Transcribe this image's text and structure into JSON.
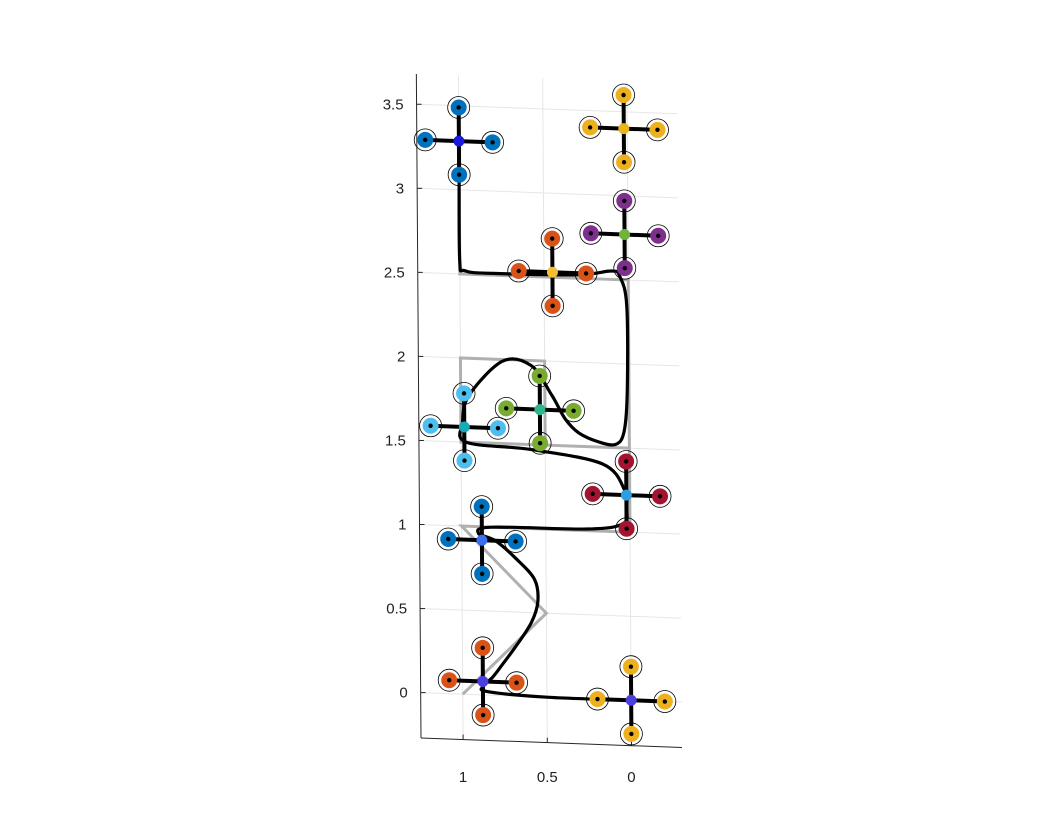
{
  "chart_data": {
    "type": "line",
    "title": "",
    "xlabel": "",
    "ylabel": "",
    "x_reversed": true,
    "xlim": [
      1.25,
      -0.3
    ],
    "ylim": [
      -0.27,
      3.68
    ],
    "grid": true,
    "x_ticks": [
      {
        "value": 1,
        "label": "1"
      },
      {
        "value": 0.5,
        "label": "0.5"
      },
      {
        "value": 0,
        "label": "0"
      }
    ],
    "y_ticks": [
      {
        "value": 0,
        "label": "0"
      },
      {
        "value": 0.5,
        "label": "0.5"
      },
      {
        "value": 1,
        "label": "1"
      },
      {
        "value": 1.5,
        "label": "1.5"
      },
      {
        "value": 2,
        "label": "2"
      },
      {
        "value": 2.5,
        "label": "2.5"
      },
      {
        "value": 3,
        "label": "3"
      },
      {
        "value": 3.5,
        "label": "3.5"
      }
    ],
    "series": [
      {
        "role": "reference path",
        "color": "#b0b0b0",
        "x": [
          1,
          1,
          0.5,
          1,
          0,
          0,
          1,
          1,
          0.5,
          0.5,
          0,
          0,
          1,
          1
        ],
        "y": [
          0,
          0,
          0.5,
          1,
          1,
          1.5,
          1.5,
          2,
          2,
          1.5,
          1.5,
          2.5,
          2.5,
          3.1
        ]
      },
      {
        "role": "trajectory",
        "color": "#000000",
        "x": [
          0,
          0.5,
          0.85,
          0.88,
          0.82,
          0.76,
          0.68,
          0.59,
          0.55,
          0.57,
          0.68,
          0.8,
          0.9,
          0.82,
          0.25,
          0.04,
          0.02,
          0.03,
          0.16,
          0.58,
          0.97,
          0.99,
          0.95,
          0.75,
          0.58,
          0.46,
          0.38,
          0.3,
          0.18,
          0.08,
          0.03,
          0.01,
          0.01,
          0.05,
          0.1,
          0.3,
          0.8,
          0.97,
          1.0,
          1.0
        ],
        "y": [
          0.0,
          0.0,
          0.02,
          0.05,
          0.11,
          0.19,
          0.3,
          0.44,
          0.57,
          0.7,
          0.82,
          0.92,
          0.96,
          1.0,
          1.01,
          1.05,
          1.15,
          1.25,
          1.4,
          1.47,
          1.5,
          1.62,
          1.78,
          1.99,
          1.97,
          1.8,
          1.66,
          1.58,
          1.53,
          1.52,
          1.6,
          1.85,
          2.35,
          2.52,
          2.55,
          2.52,
          2.51,
          2.52,
          2.58,
          3.1
        ]
      }
    ],
    "drones": [
      {
        "x": 0,
        "y": 0,
        "hub_color": "#4a3fde",
        "rotor_color": "#edb120"
      },
      {
        "x": 0.88,
        "y": 0.08,
        "hub_color": "#4a3fde",
        "rotor_color": "#d95319"
      },
      {
        "x": 0.88,
        "y": 0.92,
        "hub_color": "#3a6ff0",
        "rotor_color": "#0072bd"
      },
      {
        "x": 0.02,
        "y": 1.22,
        "hub_color": "#2b9fe2",
        "rotor_color": "#a2142f"
      },
      {
        "x": 0.98,
        "y": 1.59,
        "hub_color": "#1aa9b6",
        "rotor_color": "#4dbeee"
      },
      {
        "x": 0.53,
        "y": 1.71,
        "hub_color": "#2fb58b",
        "rotor_color": "#77ac30"
      },
      {
        "x": 0.45,
        "y": 2.53,
        "hub_color": "#f2c12e",
        "rotor_color": "#d95319"
      },
      {
        "x": 0.02,
        "y": 2.77,
        "hub_color": "#6fb53c",
        "rotor_color": "#7e2f8e"
      },
      {
        "x": 0.02,
        "y": 3.4,
        "hub_color": "#e8b51a",
        "rotor_color": "#edb120"
      },
      {
        "x": 1.0,
        "y": 3.29,
        "hub_color": "#1a1adf",
        "rotor_color": "#0072bd"
      }
    ],
    "drone_arm_length": 0.2,
    "colors": {
      "axis": "#262626",
      "grid": "#e6e6e6",
      "reference": "#b0b0b0",
      "trajectory": "#000000",
      "background": "#ffffff"
    }
  }
}
